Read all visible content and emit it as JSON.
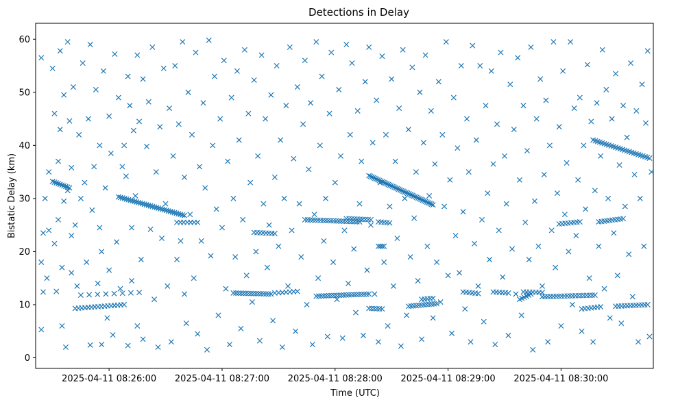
{
  "chart_data": {
    "type": "scatter",
    "title": "Detections in Delay",
    "xlabel": "Time (UTC)",
    "ylabel": "Bistatic Delay (km)",
    "marker": "x",
    "color": "#1f77b4",
    "grid": false,
    "xlim_seconds_from_082500": [
      21,
      349
    ],
    "ylim": [
      -2,
      63
    ],
    "x_ticks": [
      {
        "t": 60,
        "label": "2025-04-11 08:26:00"
      },
      {
        "t": 120,
        "label": "2025-04-11 08:27:00"
      },
      {
        "t": 180,
        "label": "2025-04-11 08:28:00"
      },
      {
        "t": 240,
        "label": "2025-04-11 08:29:00"
      },
      {
        "t": 300,
        "label": "2025-04-11 08:30:00"
      }
    ],
    "y_ticks": [
      {
        "v": 0,
        "label": "0"
      },
      {
        "v": 10,
        "label": "10"
      },
      {
        "v": 20,
        "label": "20"
      },
      {
        "v": 30,
        "label": "30"
      },
      {
        "v": 40,
        "label": "40"
      },
      {
        "v": 50,
        "label": "50"
      },
      {
        "v": 60,
        "label": "60"
      }
    ],
    "tracks": [
      {
        "t0": 30,
        "t1": 39,
        "y0": 33.2,
        "y1": 32.0,
        "n": 10
      },
      {
        "t0": 42,
        "t1": 68,
        "y0": 9.3,
        "y1": 10.0,
        "n": 16
      },
      {
        "t0": 45,
        "t1": 76,
        "y0": 11.8,
        "y1": 12.3,
        "n": 8
      },
      {
        "t0": 65,
        "t1": 100,
        "y0": 30.3,
        "y1": 26.8,
        "n": 34
      },
      {
        "t0": 96,
        "t1": 107,
        "y0": 25.5,
        "y1": 25.5,
        "n": 7
      },
      {
        "t0": 126,
        "t1": 146,
        "y0": 12.2,
        "y1": 12.0,
        "n": 16
      },
      {
        "t0": 137,
        "t1": 148,
        "y0": 23.6,
        "y1": 23.4,
        "n": 8
      },
      {
        "t0": 148,
        "t1": 160,
        "y0": 12.2,
        "y1": 12.5,
        "n": 7
      },
      {
        "t0": 164,
        "t1": 193,
        "y0": 26.0,
        "y1": 25.6,
        "n": 22
      },
      {
        "t0": 170,
        "t1": 198,
        "y0": 11.6,
        "y1": 12.0,
        "n": 22
      },
      {
        "t0": 186,
        "t1": 199,
        "y0": 26.2,
        "y1": 26.0,
        "n": 10
      },
      {
        "t0": 198,
        "t1": 205,
        "y0": 9.3,
        "y1": 9.2,
        "n": 6
      },
      {
        "t0": 198,
        "t1": 232,
        "y0": 34.3,
        "y1": 28.8,
        "n": 44
      },
      {
        "t0": 203,
        "t1": 209,
        "y0": 25.6,
        "y1": 25.4,
        "n": 5
      },
      {
        "t0": 203,
        "t1": 206,
        "y0": 21.0,
        "y1": 21.0,
        "n": 4
      },
      {
        "t0": 219,
        "t1": 234,
        "y0": 9.7,
        "y1": 10.2,
        "n": 12
      },
      {
        "t0": 226,
        "t1": 232,
        "y0": 11.0,
        "y1": 11.2,
        "n": 5
      },
      {
        "t0": 248,
        "t1": 256,
        "y0": 12.4,
        "y1": 12.1,
        "n": 6
      },
      {
        "t0": 264,
        "t1": 272,
        "y0": 12.4,
        "y1": 12.2,
        "n": 6
      },
      {
        "t0": 278,
        "t1": 284,
        "y0": 11.0,
        "y1": 12.0,
        "n": 6
      },
      {
        "t0": 280,
        "t1": 290,
        "y0": 12.4,
        "y1": 12.3,
        "n": 7
      },
      {
        "t0": 290,
        "t1": 318,
        "y0": 11.5,
        "y1": 11.8,
        "n": 20
      },
      {
        "t0": 299,
        "t1": 310,
        "y0": 25.2,
        "y1": 25.6,
        "n": 8
      },
      {
        "t0": 311,
        "t1": 321,
        "y0": 9.2,
        "y1": 9.6,
        "n": 7
      },
      {
        "t0": 317,
        "t1": 347,
        "y0": 41.0,
        "y1": 37.6,
        "n": 26
      },
      {
        "t0": 320,
        "t1": 333,
        "y0": 25.6,
        "y1": 26.2,
        "n": 10
      },
      {
        "t0": 329,
        "t1": 346,
        "y0": 9.7,
        "y1": 10.0,
        "n": 12
      }
    ],
    "scattered": [
      [
        24,
        56.5
      ],
      [
        24,
        18
      ],
      [
        24,
        5.3
      ],
      [
        25,
        12.4
      ],
      [
        25,
        23.5
      ],
      [
        26,
        30
      ],
      [
        27,
        15
      ],
      [
        28,
        24
      ],
      [
        28,
        35
      ],
      [
        30,
        54.5
      ],
      [
        31,
        46
      ],
      [
        31,
        21.5
      ],
      [
        32,
        12.5
      ],
      [
        33,
        26
      ],
      [
        33,
        37
      ],
      [
        34,
        43
      ],
      [
        34,
        57.8
      ],
      [
        35,
        17
      ],
      [
        35,
        6
      ],
      [
        36,
        49.5
      ],
      [
        36,
        29.5
      ],
      [
        37,
        2
      ],
      [
        38,
        59.5
      ],
      [
        38,
        31.5
      ],
      [
        39,
        44.6
      ],
      [
        40,
        35.8
      ],
      [
        40,
        23
      ],
      [
        40,
        16
      ],
      [
        41,
        51
      ],
      [
        42,
        25
      ],
      [
        43,
        13.5
      ],
      [
        44,
        42
      ],
      [
        45,
        30
      ],
      [
        46,
        55.5
      ],
      [
        47,
        33
      ],
      [
        48,
        18
      ],
      [
        49,
        45
      ],
      [
        50,
        59
      ],
      [
        50,
        2.4
      ],
      [
        51,
        27.8
      ],
      [
        52,
        36
      ],
      [
        53,
        50.5
      ],
      [
        54,
        14
      ],
      [
        55,
        40
      ],
      [
        55,
        24.5
      ],
      [
        56,
        20
      ],
      [
        56,
        2.5
      ],
      [
        57,
        54
      ],
      [
        58,
        32
      ],
      [
        59,
        7.5
      ],
      [
        60,
        45.5
      ],
      [
        60,
        16.5
      ],
      [
        61,
        38.5
      ],
      [
        62,
        4.3
      ],
      [
        63,
        57.2
      ],
      [
        64,
        21.8
      ],
      [
        65,
        49
      ],
      [
        66,
        13
      ],
      [
        67,
        36
      ],
      [
        68,
        40
      ],
      [
        69,
        34.2
      ],
      [
        70,
        53
      ],
      [
        70,
        2.3
      ],
      [
        71,
        47.5
      ],
      [
        72,
        14.5
      ],
      [
        72,
        24.5
      ],
      [
        73,
        42.8
      ],
      [
        74,
        30.5
      ],
      [
        75,
        57
      ],
      [
        75,
        6
      ],
      [
        76,
        44.5
      ],
      [
        77,
        18.5
      ],
      [
        78,
        52.5
      ],
      [
        78,
        3.5
      ],
      [
        80,
        39.8
      ],
      [
        81,
        48.2
      ],
      [
        82,
        24.2
      ],
      [
        83,
        58.5
      ],
      [
        84,
        11
      ],
      [
        85,
        35
      ],
      [
        86,
        2
      ],
      [
        87,
        43.5
      ],
      [
        88,
        22.5
      ],
      [
        89,
        54.5
      ],
      [
        90,
        29
      ],
      [
        91,
        13.5
      ],
      [
        92,
        47
      ],
      [
        93,
        3
      ],
      [
        94,
        38
      ],
      [
        95,
        55
      ],
      [
        96,
        18.5
      ],
      [
        97,
        44
      ],
      [
        98,
        22
      ],
      [
        99,
        59.5
      ],
      [
        100,
        12
      ],
      [
        100,
        34
      ],
      [
        101,
        6.5
      ],
      [
        102,
        50
      ],
      [
        103,
        27
      ],
      [
        104,
        42
      ],
      [
        105,
        15
      ],
      [
        106,
        57.5
      ],
      [
        107,
        4.5
      ],
      [
        108,
        36
      ],
      [
        109,
        22
      ],
      [
        110,
        48
      ],
      [
        111,
        32
      ],
      [
        112,
        1.5
      ],
      [
        113,
        59.8
      ],
      [
        114,
        19.2
      ],
      [
        115,
        40
      ],
      [
        116,
        53
      ],
      [
        117,
        28
      ],
      [
        118,
        8
      ],
      [
        119,
        45
      ],
      [
        120,
        24.5
      ],
      [
        121,
        56
      ],
      [
        122,
        13
      ],
      [
        123,
        37
      ],
      [
        124,
        2.5
      ],
      [
        125,
        49
      ],
      [
        126,
        30
      ],
      [
        127,
        19
      ],
      [
        128,
        54
      ],
      [
        129,
        41
      ],
      [
        130,
        5.5
      ],
      [
        131,
        26
      ],
      [
        132,
        58
      ],
      [
        133,
        15.5
      ],
      [
        134,
        46
      ],
      [
        135,
        33
      ],
      [
        136,
        10.5
      ],
      [
        137,
        52.3
      ],
      [
        138,
        20
      ],
      [
        139,
        38
      ],
      [
        140,
        3.2
      ],
      [
        141,
        57
      ],
      [
        142,
        29
      ],
      [
        143,
        45
      ],
      [
        144,
        17
      ],
      [
        145,
        25
      ],
      [
        146,
        49.5
      ],
      [
        147,
        7
      ],
      [
        148,
        34
      ],
      [
        149,
        55
      ],
      [
        150,
        21
      ],
      [
        151,
        41
      ],
      [
        152,
        2
      ],
      [
        153,
        30
      ],
      [
        154,
        47.5
      ],
      [
        155,
        13.5
      ],
      [
        156,
        58.5
      ],
      [
        157,
        24
      ],
      [
        158,
        37.5
      ],
      [
        159,
        5
      ],
      [
        160,
        51
      ],
      [
        161,
        29
      ],
      [
        162,
        19
      ],
      [
        163,
        44
      ],
      [
        164,
        56
      ],
      [
        165,
        10
      ],
      [
        166,
        35.5
      ],
      [
        167,
        48
      ],
      [
        168,
        2.5
      ],
      [
        169,
        27
      ],
      [
        170,
        59.5
      ],
      [
        171,
        15
      ],
      [
        172,
        40
      ],
      [
        173,
        53
      ],
      [
        174,
        22
      ],
      [
        175,
        30
      ],
      [
        176,
        4
      ],
      [
        177,
        46
      ],
      [
        178,
        57.5
      ],
      [
        179,
        18
      ],
      [
        180,
        33
      ],
      [
        181,
        11
      ],
      [
        182,
        50.5
      ],
      [
        183,
        38
      ],
      [
        184,
        3.7
      ],
      [
        185,
        24
      ],
      [
        186,
        59
      ],
      [
        187,
        14
      ],
      [
        188,
        42
      ],
      [
        189,
        55.5
      ],
      [
        190,
        20.5
      ],
      [
        191,
        8.5
      ],
      [
        192,
        46.5
      ],
      [
        193,
        29
      ],
      [
        194,
        37
      ],
      [
        195,
        4.2
      ],
      [
        196,
        52
      ],
      [
        197,
        16.5
      ],
      [
        198,
        58.5
      ],
      [
        199,
        25
      ],
      [
        200,
        40.5
      ],
      [
        201,
        12
      ],
      [
        202,
        48.5
      ],
      [
        203,
        3
      ],
      [
        204,
        33
      ],
      [
        205,
        56.8
      ],
      [
        206,
        18
      ],
      [
        207,
        42
      ],
      [
        208,
        6
      ],
      [
        209,
        28.5
      ],
      [
        210,
        52.5
      ],
      [
        211,
        13.5
      ],
      [
        212,
        37
      ],
      [
        213,
        22.5
      ],
      [
        214,
        47
      ],
      [
        215,
        2.2
      ],
      [
        216,
        58
      ],
      [
        217,
        30
      ],
      [
        218,
        8
      ],
      [
        219,
        43
      ],
      [
        220,
        19
      ],
      [
        221,
        54.7
      ],
      [
        222,
        26.3
      ],
      [
        223,
        35
      ],
      [
        224,
        14.5
      ],
      [
        225,
        50
      ],
      [
        226,
        3.5
      ],
      [
        227,
        40.5
      ],
      [
        228,
        57
      ],
      [
        229,
        21
      ],
      [
        230,
        30.5
      ],
      [
        231,
        46.5
      ],
      [
        232,
        7.5
      ],
      [
        233,
        36.5
      ],
      [
        234,
        18
      ],
      [
        235,
        52
      ],
      [
        236,
        10.5
      ],
      [
        237,
        42
      ],
      [
        238,
        28.5
      ],
      [
        239,
        59.5
      ],
      [
        240,
        15.5
      ],
      [
        241,
        33.5
      ],
      [
        242,
        4.6
      ],
      [
        243,
        49
      ],
      [
        244,
        23
      ],
      [
        245,
        39.5
      ],
      [
        246,
        16
      ],
      [
        247,
        55
      ],
      [
        248,
        27.5
      ],
      [
        249,
        9.2
      ],
      [
        250,
        45
      ],
      [
        251,
        35
      ],
      [
        252,
        3
      ],
      [
        253,
        58.8
      ],
      [
        254,
        21.5
      ],
      [
        255,
        41
      ],
      [
        256,
        13.5
      ],
      [
        257,
        55
      ],
      [
        258,
        26
      ],
      [
        259,
        6.8
      ],
      [
        260,
        47.5
      ],
      [
        261,
        31
      ],
      [
        262,
        18.5
      ],
      [
        263,
        54
      ],
      [
        264,
        36.5
      ],
      [
        265,
        2.5
      ],
      [
        266,
        44
      ],
      [
        267,
        24
      ],
      [
        268,
        57.5
      ],
      [
        269,
        15.2
      ],
      [
        270,
        38
      ],
      [
        271,
        29
      ],
      [
        272,
        4.2
      ],
      [
        273,
        51.5
      ],
      [
        274,
        20.5
      ],
      [
        275,
        43
      ],
      [
        276,
        12
      ],
      [
        277,
        56.5
      ],
      [
        278,
        33.5
      ],
      [
        279,
        8
      ],
      [
        280,
        47.5
      ],
      [
        281,
        25.5
      ],
      [
        282,
        39
      ],
      [
        283,
        18.5
      ],
      [
        284,
        58.5
      ],
      [
        285,
        1.5
      ],
      [
        286,
        29.5
      ],
      [
        287,
        45
      ],
      [
        288,
        21
      ],
      [
        289,
        52.5
      ],
      [
        290,
        13.5
      ],
      [
        291,
        34.5
      ],
      [
        292,
        48.5
      ],
      [
        293,
        3
      ],
      [
        294,
        40
      ],
      [
        295,
        24
      ],
      [
        296,
        59.5
      ],
      [
        297,
        17
      ],
      [
        298,
        31
      ],
      [
        299,
        43.5
      ],
      [
        300,
        6
      ],
      [
        301,
        54
      ],
      [
        302,
        27
      ],
      [
        303,
        36.7
      ],
      [
        304,
        20
      ],
      [
        305,
        59.5
      ],
      [
        306,
        10
      ],
      [
        307,
        47
      ],
      [
        308,
        23
      ],
      [
        309,
        33.5
      ],
      [
        310,
        49
      ],
      [
        311,
        5
      ],
      [
        312,
        40
      ],
      [
        313,
        28
      ],
      [
        314,
        55.2
      ],
      [
        315,
        15
      ],
      [
        316,
        44.5
      ],
      [
        317,
        3
      ],
      [
        318,
        31.5
      ],
      [
        319,
        48
      ],
      [
        320,
        21
      ],
      [
        321,
        38
      ],
      [
        322,
        58
      ],
      [
        323,
        13
      ],
      [
        324,
        50.5
      ],
      [
        325,
        30
      ],
      [
        326,
        7.5
      ],
      [
        327,
        45
      ],
      [
        328,
        23.5
      ],
      [
        329,
        53.5
      ],
      [
        330,
        15.5
      ],
      [
        331,
        36.3
      ],
      [
        332,
        6.5
      ],
      [
        333,
        47.5
      ],
      [
        334,
        28.5
      ],
      [
        335,
        41.5
      ],
      [
        336,
        19.5
      ],
      [
        337,
        55.5
      ],
      [
        338,
        11.5
      ],
      [
        339,
        34.5
      ],
      [
        340,
        46.5
      ],
      [
        341,
        3
      ],
      [
        342,
        30
      ],
      [
        343,
        51.5
      ],
      [
        344,
        21
      ],
      [
        345,
        44.2
      ],
      [
        346,
        57.8
      ],
      [
        347,
        4
      ],
      [
        348,
        35
      ]
    ]
  }
}
